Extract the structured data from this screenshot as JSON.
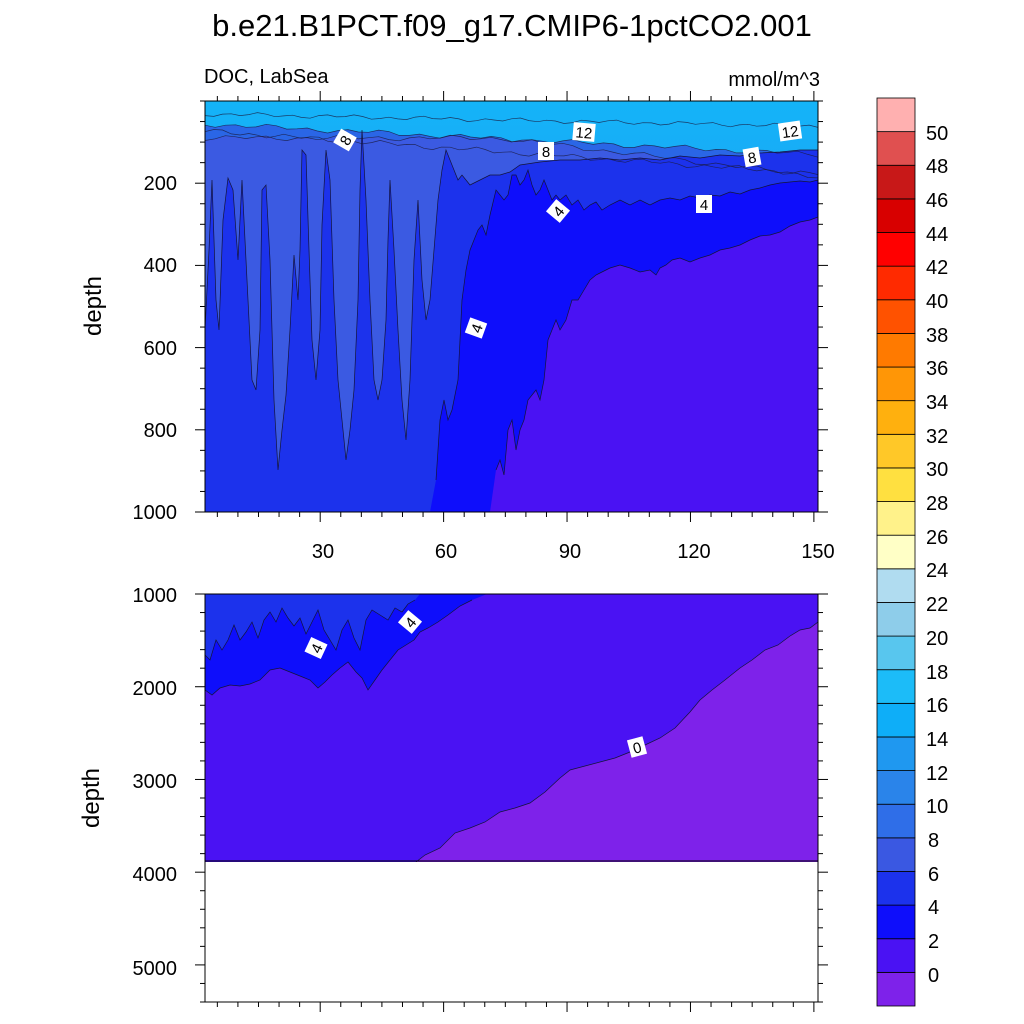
{
  "chart_data": {
    "type": "heatmap",
    "title": "b.e21.B1PCT.f09_g17.CMIP6-1pctCO2.001",
    "subtitle_left": "DOC, LabSea",
    "subtitle_right": "mmol/m^3",
    "variable": "DOC",
    "region": "LabSea",
    "units": "mmol/m^3",
    "x_ticks": [
      "30",
      "60",
      "90",
      "120",
      "150"
    ],
    "xlim": [
      2,
      151
    ],
    "panels": [
      {
        "name": "upper",
        "ylabel": "depth",
        "ylim": [
          0,
          1000
        ],
        "y_ticks": [
          "200",
          "400",
          "600",
          "800",
          "1000"
        ],
        "contour_labels": [
          {
            "text": "8",
            "x": 36,
            "depth": 95
          },
          {
            "text": "12",
            "x": 93,
            "depth": 75
          },
          {
            "text": "8",
            "x": 86,
            "depth": 115
          },
          {
            "text": "12",
            "x": 144,
            "depth": 70
          },
          {
            "text": "8",
            "x": 136,
            "depth": 135
          },
          {
            "text": "4",
            "x": 87,
            "depth": 265
          },
          {
            "text": "4",
            "x": 122,
            "depth": 245
          },
          {
            "text": "4",
            "x": 65,
            "depth": 550
          }
        ]
      },
      {
        "name": "lower",
        "ylabel": "depth",
        "ylim": [
          1000,
          5400
        ],
        "y_ticks": [
          "1000",
          "2000",
          "3000",
          "4000",
          "5000"
        ],
        "seafloor_depth": 3870,
        "contour_labels": [
          {
            "text": "4",
            "x": 30,
            "depth": 1560
          },
          {
            "text": "4",
            "x": 52,
            "depth": 1320
          },
          {
            "text": "0",
            "x": 105,
            "depth": 2640
          }
        ]
      }
    ],
    "colorbar": {
      "levels": [
        "0",
        "2",
        "4",
        "6",
        "8",
        "10",
        "12",
        "14",
        "16",
        "18",
        "20",
        "22",
        "24",
        "26",
        "28",
        "30",
        "32",
        "34",
        "36",
        "38",
        "40",
        "42",
        "44",
        "46",
        "48",
        "50"
      ],
      "colors": [
        "#7e22ea",
        "#4a12f3",
        "#0e0efb",
        "#1c32ec",
        "#3a58e2",
        "#2f6ee8",
        "#2a84ea",
        "#1f98f0",
        "#0eaef8",
        "#1cbcf8",
        "#58c6ee",
        "#8ecdea",
        "#b0dcf0",
        "#ffffc6",
        "#fff28a",
        "#ffe040",
        "#ffc828",
        "#ffb00e",
        "#ff9606",
        "#ff7a00",
        "#ff5200",
        "#ff2a00",
        "#ff0000",
        "#d80000",
        "#c81818",
        "#e05050",
        "#ffb0b0"
      ]
    },
    "fill_colors": {
      "below_0": "#7e22ea",
      "0_to_2": "#4a12f3",
      "2_to_4": "#0e0efb",
      "4_to_6": "#1c32ec",
      "6_to_8": "#3a58e2",
      "above_8": "#2f6ee8",
      "top_band": "#1fa8f4"
    }
  }
}
